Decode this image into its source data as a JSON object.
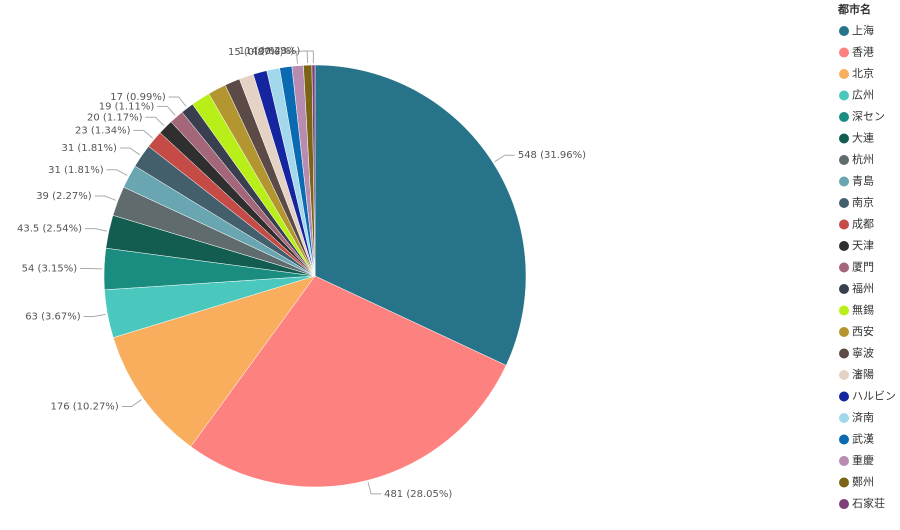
{
  "chart_data": {
    "type": "pie",
    "legend_title": "都市名",
    "legend_position": "right",
    "categories": [
      "上海",
      "香港",
      "北京",
      "広州",
      "深セン",
      "大連",
      "杭州",
      "青島",
      "南京",
      "成都",
      "天津",
      "厦門",
      "福州",
      "無錫",
      "西安",
      "寧波",
      "瀋陽",
      "ハルビン",
      "済南",
      "武漢",
      "重慶",
      "鄭州",
      "石家荘"
    ],
    "values": [
      548,
      481,
      176,
      63,
      54,
      43.5,
      39,
      31,
      31,
      23,
      20,
      19,
      17,
      25,
      24,
      20,
      19,
      18,
      17,
      16,
      15,
      11,
      4
    ],
    "value_labels": [
      "548 (31.96%)",
      "481 (28.05%)",
      "176 (10.27%)",
      "63 (3.67%)",
      "54 (3.15%)",
      "43.5 (2.54%)",
      "39 (2.27%)",
      "31 (1.81%)",
      "31 (1.81%)",
      "23 (1.34%)",
      "20 (1.17%)",
      "19 (1.11%)",
      "17 (0.99%)",
      null,
      null,
      null,
      null,
      null,
      null,
      null,
      "15 (0.87%)",
      "11 (0.64%)",
      "4 (0.23%)"
    ],
    "colors": [
      "#26738a",
      "#fd817e",
      "#f9ae5e",
      "#4bc8be",
      "#1a8c80",
      "#125c50",
      "#5f6b6d",
      "#6aa6b2",
      "#425f6b",
      "#c44b46",
      "#2f2f2f",
      "#a4677a",
      "#3a3f4f",
      "#b9ef19",
      "#b3962f",
      "#5b4a45",
      "#e4d3c5",
      "#1525a0",
      "#a3d8ec",
      "#0a6bb2",
      "#b88bb0",
      "#7b6415",
      "#7e3f7c"
    ]
  }
}
